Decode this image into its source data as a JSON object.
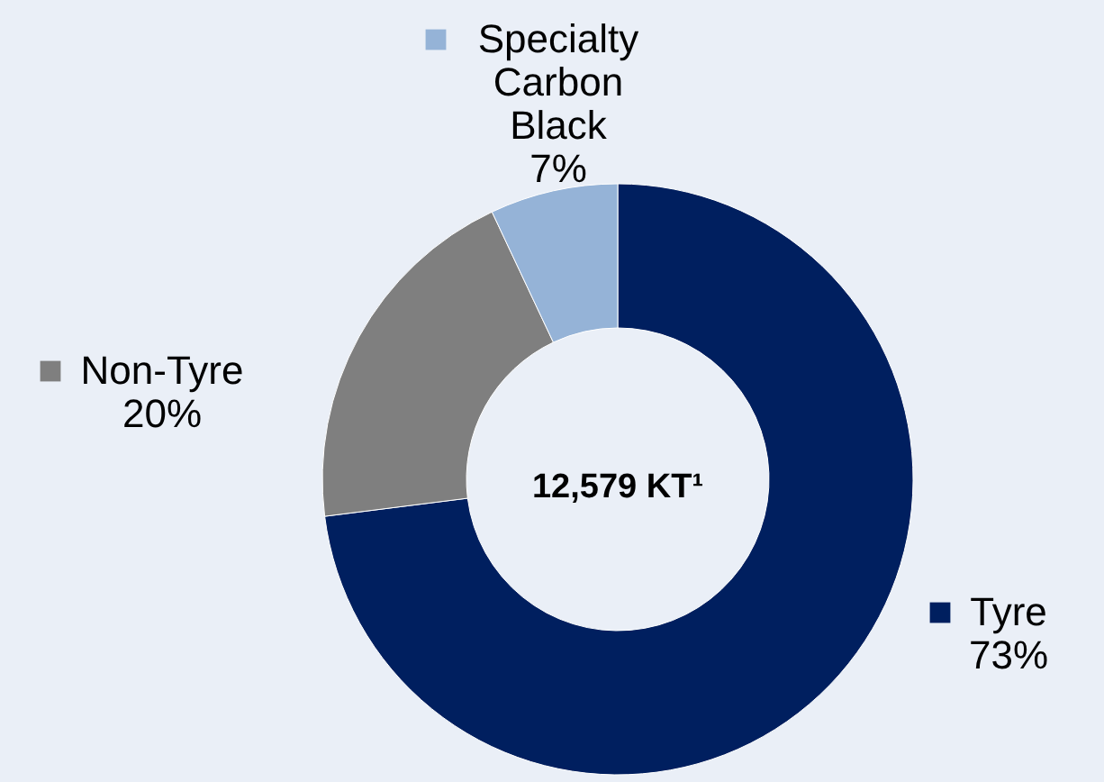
{
  "chart_data": {
    "type": "donut",
    "categories": [
      "Tyre",
      "Non-Tyre",
      "Specialty Carbon Black"
    ],
    "values": [
      73,
      20,
      7
    ],
    "colors": [
      "#001f5f",
      "#7f7f7f",
      "#95b3d7"
    ],
    "value_labels": [
      "73%",
      "20%",
      "7%"
    ],
    "annotations": [
      "12,579 KT¹"
    ],
    "legend": "top left"
  }
}
